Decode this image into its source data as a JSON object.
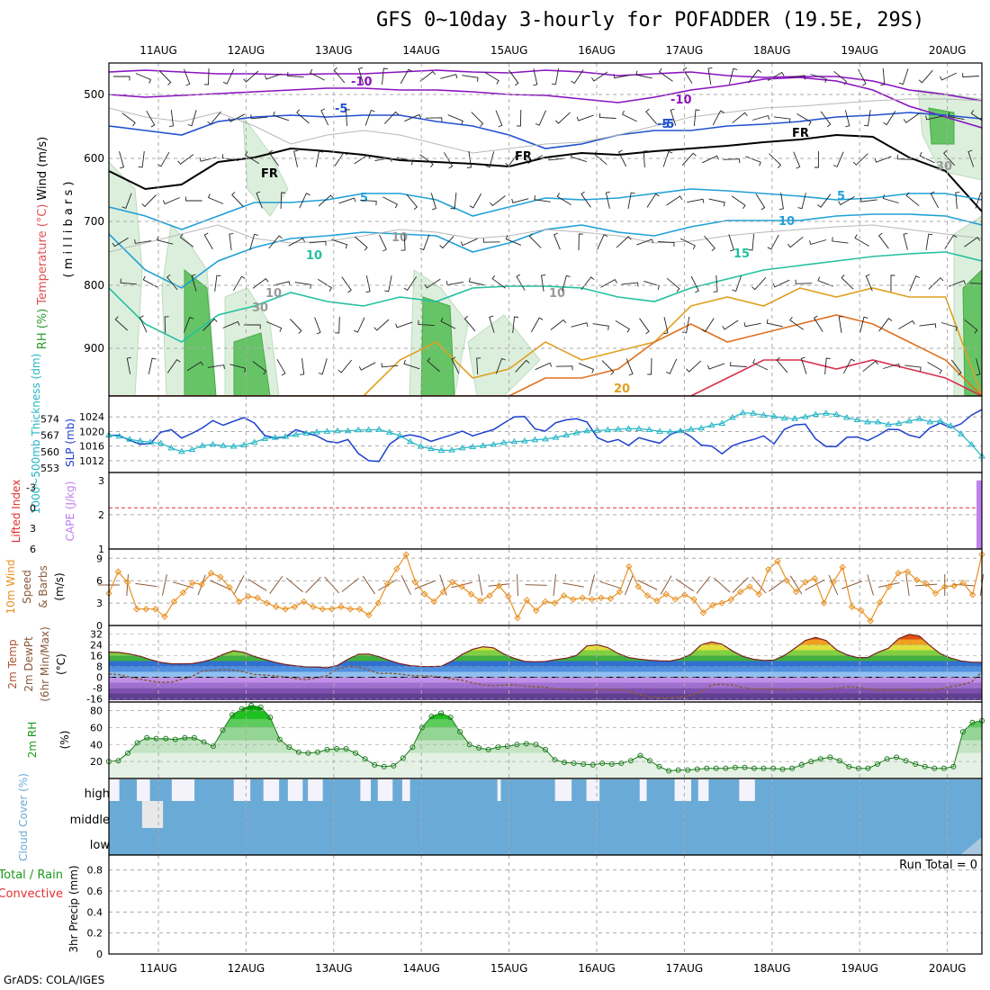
{
  "title": "GFS 0~10day 3-hourly for POFADDER (19.5E, 29S)",
  "footer": "GrADS: COLA/IGES",
  "dates": [
    "11AUG",
    "12AUG",
    "13AUG",
    "14AUG",
    "15AUG",
    "16AUG",
    "17AUG",
    "18AUG",
    "19AUG",
    "20AUG"
  ],
  "colors": {
    "grid": "#aaaaaa",
    "slp": "#1a3fcf",
    "thickness": "#22b5c5",
    "cape": "#c080f0",
    "lifted_index": "#e03030",
    "wind10m": "#e89020",
    "rh": "#1a9a1a",
    "cloud": "#6aaad6",
    "cloud_clear": "#f4f2fa"
  },
  "chart_data": [
    {
      "type": "heatmap",
      "panel": "upper-air",
      "ylabel_parts": [
        "RH (%)",
        "Temperature (°C)",
        "Wind (m/s)"
      ],
      "ylabel_mid": "( m i l l i b a r s )",
      "yticks": [
        "500",
        "600",
        "700",
        "800",
        "900"
      ],
      "contour_labels": [
        "-10",
        "-10",
        "-5",
        "-5",
        "FR",
        "FR",
        "FR",
        "-5",
        "5",
        "5",
        "10",
        "10",
        "15",
        "20",
        "10",
        "30",
        "10",
        "10",
        "30"
      ]
    },
    {
      "type": "line",
      "panel": "slp-thickness",
      "ylabel_left": "1000~500mb Thickness (dm)",
      "ylabel_right": "SLP (mb)",
      "thickness_ticks": [
        "574",
        "567",
        "560",
        "553"
      ],
      "slp_ticks": [
        "1024",
        "1020",
        "1016",
        "1012"
      ],
      "thickness_range": [
        553,
        581
      ],
      "slp_range": [
        1010,
        1028
      ],
      "series": [
        {
          "name": "SLP (mb)",
          "values": [
            1019.0,
            1018.9,
            1017.6,
            1016.5,
            1016.7,
            1019.8,
            1020.5,
            1018.2,
            1019.5,
            1021.0,
            1023.0,
            1021.7,
            1022.8,
            1023.8,
            1022.3,
            1018.9,
            1018.2,
            1018.5,
            1020.5,
            1019.6,
            1018.8,
            1017.3,
            1016.9,
            1017.8,
            1014.0,
            1012.0,
            1011.8,
            1016.5,
            1018.5,
            1019.1,
            1018.5,
            1017.3,
            1018.2,
            1019.1,
            1020.1,
            1018.8,
            1019.7,
            1020.5,
            1022.3,
            1024.0,
            1024.1,
            1020.7,
            1020.1,
            1022.4,
            1023.2,
            1023.5,
            1022.6,
            1018.3,
            1017.1,
            1017.8,
            1016.2,
            1018.3,
            1017.5,
            1016.8,
            1019.1,
            1020.3,
            1018.6,
            1016.3,
            1016.0,
            1013.9,
            1016.1,
            1017.1,
            1017.8,
            1018.8,
            1016.6,
            1020.6,
            1021.8,
            1022.0,
            1018.0,
            1015.9,
            1015.9,
            1018.4,
            1018.5,
            1017.5,
            1018.9,
            1020.6,
            1020.5,
            1019.0,
            1018.3,
            1021.0,
            1022.3,
            1021.0,
            1022.1,
            1024.5,
            1026.0
          ]
        },
        {
          "name": "1000~500mb Thickness (dm)",
          "values": [
            567.0,
            566.5,
            565.2,
            564.5,
            564.0,
            563.5,
            561.5,
            560.0,
            560.8,
            562.5,
            563.0,
            562.5,
            562.2,
            562.8,
            564.0,
            565.5,
            566.0,
            566.4,
            567.2,
            567.8,
            568.3,
            568.6,
            568.8,
            568.8,
            569.2,
            569.2,
            569.4,
            568.2,
            566.8,
            564.2,
            562.2,
            561.2,
            560.5,
            560.6,
            561.5,
            562.0,
            562.5,
            563.0,
            563.8,
            564.2,
            564.5,
            565.0,
            565.3,
            566.0,
            567.0,
            568.0,
            568.8,
            569.0,
            569.2,
            569.5,
            569.8,
            569.7,
            569.3,
            568.6,
            568.4,
            568.8,
            569.5,
            570.0,
            571.2,
            572.0,
            574.5,
            576.5,
            576.3,
            575.5,
            575.0,
            574.2,
            574.0,
            574.8,
            575.8,
            576.3,
            575.8,
            574.5,
            573.5,
            572.6,
            572.6,
            571.5,
            572.0,
            573.0,
            574.0,
            572.6,
            573.0,
            571.0,
            567.5,
            563.0,
            558.0
          ]
        }
      ]
    },
    {
      "type": "bar",
      "panel": "instability",
      "ylabel_left": "Lifted Index",
      "ylabel_right": "CAPE (J/kg)",
      "li_ticks": [
        "-3",
        "0",
        "3",
        "6"
      ],
      "cape_ticks": [
        "3",
        "2",
        "1"
      ],
      "li_range": [
        -4.5,
        6
      ],
      "cape_range": [
        1,
        3.1
      ],
      "cape_values": [
        0,
        0,
        0,
        0,
        0,
        0,
        0,
        0,
        0,
        0,
        0,
        0,
        0,
        0,
        0,
        0,
        0,
        0,
        0,
        0,
        0,
        0,
        0,
        0,
        0,
        0,
        0,
        0,
        0,
        0,
        0,
        0,
        0,
        0,
        0,
        0,
        0,
        0,
        0,
        0,
        0,
        0,
        0,
        0,
        0,
        0,
        0,
        0,
        0,
        0,
        0,
        0,
        0,
        0,
        0,
        0,
        0,
        0,
        0,
        0,
        0,
        0,
        0,
        0,
        0,
        0,
        0,
        0,
        0,
        0,
        0,
        0,
        0,
        0,
        0,
        0,
        0,
        0,
        0,
        0,
        0,
        0,
        0,
        0,
        3.0
      ],
      "li_values": [
        0,
        0,
        0,
        0,
        0,
        0,
        0,
        0,
        0,
        0,
        0,
        0,
        0,
        0,
        0,
        0,
        0,
        0,
        0,
        0,
        0,
        0,
        0,
        0,
        0,
        0,
        0,
        0,
        0,
        0,
        0,
        0,
        0,
        0,
        0,
        0,
        0,
        0,
        0,
        0,
        0,
        0,
        0,
        0,
        0,
        0,
        0,
        0,
        0,
        0,
        0,
        0,
        0,
        0,
        0,
        0,
        0,
        0,
        0,
        0,
        0,
        0,
        0,
        0,
        0,
        0,
        0,
        0,
        0,
        0,
        0,
        0,
        0,
        0,
        0,
        0,
        0,
        0,
        0,
        0,
        0,
        0,
        0,
        0,
        0
      ]
    },
    {
      "type": "line",
      "panel": "wind10m",
      "ylabel": "10m Wind Speed & Barbs (m/s)",
      "ylabel_parts": [
        "10m Wind",
        "Speed",
        "& Barbs",
        "(m/s)"
      ],
      "yticks": [
        "9",
        "6",
        "3",
        "0"
      ],
      "ylim": [
        0,
        10
      ],
      "series": [
        {
          "name": "10m Wind Speed (m/s)",
          "values": [
            4.3,
            7.2,
            5.8,
            2.2,
            2.2,
            2.2,
            1.2,
            3.2,
            4.4,
            5.7,
            5.5,
            7.0,
            6.5,
            5.1,
            3.2,
            3.9,
            3.7,
            3.0,
            2.5,
            2.2,
            2.5,
            3.2,
            2.5,
            2.2,
            2.2,
            2.5,
            2.2,
            2.2,
            1.4,
            3.0,
            5.6,
            7.6,
            9.5,
            5.8,
            4.2,
            3.2,
            4.5,
            5.8,
            5.2,
            4.2,
            3.3,
            4.0,
            5.3,
            3.9,
            1.0,
            3.4,
            2.0,
            3.2,
            3.0,
            4.0,
            3.5,
            3.7,
            3.5,
            3.7,
            3.6,
            4.5,
            7.9,
            5.2,
            4.0,
            3.3,
            4.2,
            3.5,
            4.1,
            3.5,
            1.7,
            2.7,
            3.0,
            3.5,
            4.5,
            5.2,
            4.2,
            7.5,
            8.6,
            6.0,
            4.5,
            5.8,
            6.3,
            3.0,
            5.8,
            7.8,
            2.5,
            2.0,
            0.6,
            3.1,
            5.2,
            7.0,
            7.2,
            6.1,
            5.6,
            4.3,
            5.2,
            5.3,
            5.7,
            4.1,
            9.5
          ]
        }
      ]
    },
    {
      "type": "area",
      "panel": "temperature",
      "ylabel_parts": [
        "2m Temp",
        "2m DewPt",
        "(6hr Min/Max)",
        "(°C)"
      ],
      "yticks": [
        "32",
        "24",
        "16",
        "8",
        "0",
        "-8",
        "-16"
      ],
      "ylim": [
        -17,
        35
      ],
      "series": [
        {
          "name": "2m Temp",
          "values": [
            18.7,
            18.4,
            17.2,
            15.6,
            13.1,
            11.0,
            10.0,
            9.9,
            10.1,
            11.4,
            13.5,
            16.9,
            19.7,
            18.4,
            15.4,
            13.2,
            11.1,
            9.5,
            8.4,
            7.7,
            7.6,
            7.0,
            8.8,
            13.3,
            17.0,
            17.2,
            15.2,
            12.5,
            10.1,
            8.6,
            8.0,
            7.9,
            8.2,
            11.9,
            17.0,
            20.7,
            22.6,
            21.8,
            17.2,
            14.0,
            11.8,
            11.4,
            11.7,
            13.0,
            14.1,
            16.2,
            23.2,
            24.1,
            22.0,
            17.6,
            14.6,
            13.5,
            12.6,
            12.2,
            12.0,
            13.6,
            17.0,
            24.1,
            26.2,
            24.5,
            19.5,
            15.5,
            13.3,
            12.5,
            12.7,
            16.2,
            21.4,
            27.2,
            29.5,
            27.2,
            20.3,
            16.7,
            14.6,
            14.6,
            18.5,
            21.5,
            28.6,
            31.8,
            30.5,
            23.5,
            17.5,
            14.2,
            12.0,
            11.2,
            11.0
          ]
        },
        {
          "name": "2m DewPt",
          "values": [
            2.5,
            1.9,
            0.0,
            -1.5,
            -2.8,
            -3.8,
            -3.6,
            -1.5,
            0.6,
            4.7,
            5.0,
            5.6,
            5.2,
            4.0,
            2.1,
            1.6,
            1.0,
            0.2,
            -1.0,
            -1.8,
            -0.4,
            1.2,
            6.3,
            7.9,
            7.7,
            5.3,
            2.7,
            3.0,
            2.3,
            1.3,
            1.0,
            0.9,
            0.1,
            -1.2,
            -2.2,
            -4.2,
            -5.8,
            -6.2,
            -5.8,
            -5.8,
            -6.5,
            -7.0,
            -7.4,
            -8.4,
            -9.2,
            -9.4,
            -9.5,
            -9.2,
            -9.3,
            -9.4,
            -10.2,
            -12.5,
            -14.7,
            -15.3,
            -15.3,
            -14.6,
            -13.3,
            -10.8,
            -5.6,
            -5.2,
            -5.8,
            -7.7,
            -8.6,
            -8.7,
            -8.8,
            -9.3,
            -8.9,
            -8.4,
            -9.6,
            -8.6,
            -8.2,
            -6.9,
            -7.5,
            -8.4,
            -9.5,
            -9.8,
            -9.2,
            -9.6,
            -9.2,
            -9.8,
            -8.7,
            -7.0,
            -5.7,
            -3.6,
            4.0
          ]
        }
      ]
    },
    {
      "type": "area",
      "panel": "humidity",
      "ylabel_parts": [
        "2m RH",
        "(%)"
      ],
      "yticks": [
        "80",
        "60",
        "40",
        "20"
      ],
      "ylim": [
        0,
        88
      ],
      "series": [
        {
          "name": "2m RH",
          "values": [
            20,
            21,
            30,
            42,
            48,
            47,
            47,
            46,
            48,
            48,
            43,
            38,
            57,
            75,
            82,
            86,
            84,
            72,
            46,
            37,
            31,
            30,
            31,
            34,
            35,
            35,
            30,
            23,
            16,
            14,
            15,
            24,
            37,
            60,
            73,
            77,
            72,
            55,
            40,
            36,
            34,
            37,
            38,
            40,
            41,
            40,
            34,
            22,
            19,
            18,
            17,
            16,
            18,
            17,
            18,
            21,
            27,
            21,
            14,
            9,
            10,
            10,
            11,
            12,
            12,
            12,
            13,
            13,
            12,
            12,
            12,
            11,
            12,
            16,
            20,
            23,
            25,
            21,
            14,
            12,
            12,
            17,
            23,
            25,
            21,
            17,
            14,
            12,
            12,
            14,
            55,
            66,
            68
          ]
        }
      ]
    },
    {
      "type": "heatmap",
      "panel": "cloud",
      "ylabel": "Cloud Cover (%)",
      "rows": [
        "high",
        "middle",
        "low"
      ],
      "clear_high_segments": [
        [
          0.0,
          0.012
        ],
        [
          0.032,
          0.047
        ],
        [
          0.072,
          0.098
        ],
        [
          0.143,
          0.162
        ],
        [
          0.177,
          0.195
        ],
        [
          0.205,
          0.222
        ],
        [
          0.228,
          0.245
        ],
        [
          0.288,
          0.3
        ],
        [
          0.308,
          0.325
        ],
        [
          0.336,
          0.345
        ],
        [
          0.445,
          0.449
        ],
        [
          0.511,
          0.53
        ],
        [
          0.547,
          0.562
        ],
        [
          0.608,
          0.616
        ],
        [
          0.648,
          0.667
        ],
        [
          0.675,
          0.687
        ],
        [
          0.722,
          0.74
        ]
      ],
      "clear_mid_segments": [
        [
          0.038,
          0.062
        ]
      ],
      "low_cloud_end": [
        0.975,
        1.0
      ]
    },
    {
      "type": "bar",
      "panel": "precip",
      "ylabel_parts": [
        "Total / Rain",
        "Convective",
        "3hr Precip (mm)"
      ],
      "yticks": [
        "0.8",
        "0.6",
        "0.4",
        "0.2",
        "0"
      ],
      "ylim": [
        0,
        0.9
      ],
      "run_total": "Run Total = 0",
      "values": []
    }
  ]
}
